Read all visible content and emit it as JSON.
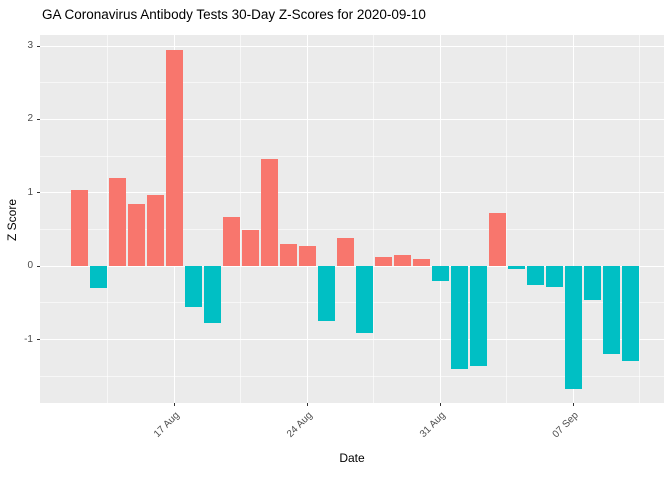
{
  "title": "GA Coronavirus Antibody Tests 30-Day Z-Scores for 2020-09-10",
  "colors": {
    "positive_bar": "#F8766D",
    "negative_bar": "#00BFC4",
    "panel_background": "#EBEBEB",
    "gridline": "#FFFFFF",
    "tick_text": "#4D4D4D",
    "axis_title_text": "#000000",
    "tick_mark": "#333333"
  },
  "chart_data": {
    "type": "bar",
    "title": "GA Coronavirus Antibody Tests 30-Day Z-Scores for 2020-09-10",
    "xlabel": "Date",
    "ylabel": "Z Score",
    "x": [
      "2020-08-12",
      "2020-08-13",
      "2020-08-14",
      "2020-08-15",
      "2020-08-16",
      "2020-08-17",
      "2020-08-18",
      "2020-08-19",
      "2020-08-20",
      "2020-08-21",
      "2020-08-22",
      "2020-08-23",
      "2020-08-24",
      "2020-08-25",
      "2020-08-26",
      "2020-08-27",
      "2020-08-28",
      "2020-08-29",
      "2020-08-30",
      "2020-08-31",
      "2020-09-01",
      "2020-09-02",
      "2020-09-03",
      "2020-09-04",
      "2020-09-05",
      "2020-09-06",
      "2020-09-07",
      "2020-09-08",
      "2020-09-09",
      "2020-09-10"
    ],
    "values": [
      1.04,
      -0.3,
      1.2,
      0.85,
      0.97,
      2.95,
      -0.55,
      -0.78,
      0.67,
      0.5,
      1.46,
      0.3,
      0.28,
      -0.75,
      0.38,
      -0.91,
      0.12,
      0.15,
      0.1,
      -0.2,
      -1.4,
      -1.36,
      0.72,
      -0.04,
      -0.26,
      -0.29,
      -1.68,
      -0.46,
      -1.2,
      -1.29
    ],
    "x_tick_labels": [
      "17 Aug",
      "24 Aug",
      "31 Aug",
      "07 Sep"
    ],
    "x_tick_dates": [
      "2020-08-17",
      "2020-08-24",
      "2020-08-31",
      "2020-09-07"
    ],
    "y_ticks": [
      3,
      2,
      1,
      0,
      -1
    ],
    "y_tick_labels": [
      "3",
      "2",
      "1",
      "0",
      "-1"
    ],
    "y_minor_ticks": [
      2.5,
      1.5,
      0.5,
      -0.5,
      -1.5
    ],
    "ylim": [
      -1.91,
      3.18
    ],
    "grid": "white major and minor gridlines on grey panel",
    "legend_position": "none",
    "color_rule": "positive bars salmon #F8766D, negative bars teal #00BFC4"
  }
}
